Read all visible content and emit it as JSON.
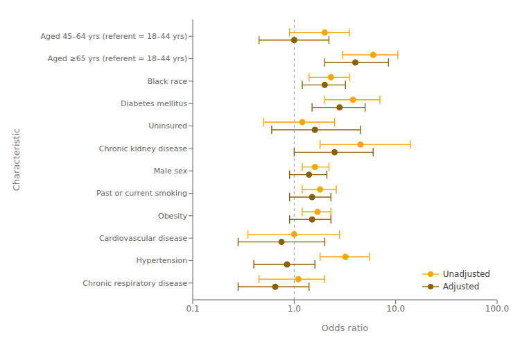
{
  "chart_data": {
    "type": "scatter",
    "xlabel": "Odds ratio",
    "ylabel": "Characteristic",
    "categories": [
      "Aged 45–64 yrs (referent = 18–44 yrs)",
      "Aged ≥65 yrs (referent = 18–44 yrs)",
      "Black race",
      "Diabetes mellitus",
      "Uninsured",
      "Chronic kidney disease",
      "Male sex",
      "Past or current smoking",
      "Obesity",
      "Cardiovascular disease",
      "Hypertension",
      "Chronic respiratory disease"
    ],
    "series": [
      {
        "name": "Unadjusted",
        "color": "#FFA500",
        "marker": "circle",
        "values": [
          2.0,
          6.0,
          2.3,
          3.8,
          1.2,
          4.5,
          1.6,
          1.8,
          1.7,
          1.0,
          3.2,
          1.1
        ],
        "lo": [
          0.9,
          3.0,
          1.4,
          2.0,
          0.5,
          1.8,
          1.2,
          1.2,
          1.2,
          0.35,
          1.8,
          0.45
        ],
        "hi": [
          3.5,
          10.5,
          3.5,
          7.0,
          2.5,
          14.0,
          2.2,
          2.6,
          2.3,
          2.8,
          5.5,
          2.0
        ]
      },
      {
        "name": "Adjusted",
        "color": "#8B6000",
        "marker": "circle",
        "values": [
          1.0,
          4.0,
          2.0,
          2.8,
          1.6,
          2.5,
          1.4,
          1.5,
          1.5,
          0.75,
          0.85,
          0.65
        ],
        "lo": [
          0.45,
          2.0,
          1.2,
          1.5,
          0.6,
          1.0,
          0.9,
          0.9,
          0.9,
          0.28,
          0.4,
          0.28
        ],
        "hi": [
          2.2,
          8.5,
          3.2,
          5.0,
          4.5,
          6.0,
          2.1,
          2.3,
          2.3,
          2.0,
          1.6,
          1.4
        ]
      }
    ],
    "xlim": [
      0.1,
      100.0
    ],
    "xticks": [
      0.1,
      {
        "value": 1.0,
        "label": "1.0"
      },
      {
        "value": 10.0,
        "label": "10.0"
      },
      {
        "value": 100.0,
        "label": "100.0"
      }
    ],
    "log": "x",
    "grid": false,
    "legend": "lower right",
    "reference_line": 1.0
  }
}
